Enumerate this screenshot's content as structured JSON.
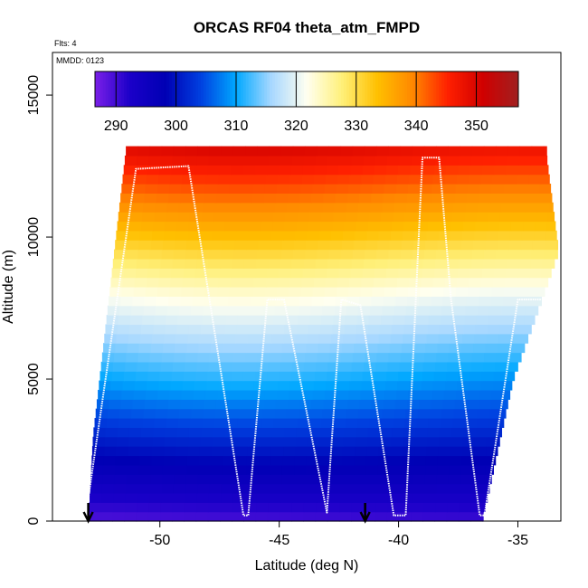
{
  "chart_data": {
    "type": "heatmap",
    "title": "ORCAS RF04 theta_atm_FMPD",
    "annotations": [
      "Flts: 4",
      "MMDD: 0123"
    ],
    "xlabel": "Latitude (deg N)",
    "ylabel": "Altitude (m)",
    "xlim": [
      -54.5,
      -33.2
    ],
    "ylim": [
      0,
      16500
    ],
    "x_ticks": [
      -50,
      -45,
      -40,
      -35
    ],
    "y_ticks": [
      0,
      5000,
      10000,
      15000
    ],
    "colorbar": {
      "range": [
        286.5,
        357
      ],
      "ticks": [
        290,
        300,
        310,
        320,
        330,
        340,
        350
      ],
      "colors": [
        "#7b1fe8",
        "#1a00c8",
        "#0000b4",
        "#0040e0",
        "#00a8ff",
        "#a8d8ff",
        "#fffff0",
        "#fff07a",
        "#ffc000",
        "#ff8800",
        "#ff2000",
        "#d00000",
        "#a02020"
      ]
    },
    "field_model": {
      "description": "potential temperature increases with altitude",
      "surface_theta_north": 289,
      "lapse_K_per_km": 4.0,
      "upper_lapse_K_per_km": 5.2
    },
    "data_extent": {
      "west_edge": [
        [
          -53.0,
          0
        ],
        [
          -52.8,
          3000
        ],
        [
          -51.5,
          12500
        ],
        [
          -33.8,
          12800
        ],
        [
          -33.3,
          9500
        ],
        [
          -34.0,
          7800
        ],
        [
          -35.2,
          5000
        ],
        [
          -36.5,
          0
        ]
      ],
      "top_alt": 12900
    },
    "flight_track": {
      "lat": [
        -53.0,
        -51.0,
        -48.8,
        -46.5,
        -46.3,
        -45.5,
        -44.8,
        -43.0,
        -42.4,
        -41.6,
        -40.2,
        -39.7,
        -39.0,
        -38.3,
        -37.8,
        -36.6,
        -36.4,
        -35.0,
        -33.8
      ],
      "alt": [
        800,
        12400,
        12500,
        200,
        200,
        7800,
        7800,
        300,
        7800,
        7600,
        200,
        200,
        12800,
        12800,
        7800,
        200,
        200,
        7800,
        7800
      ]
    },
    "markers": [
      {
        "lat": -53.0,
        "label": "arrow"
      },
      {
        "lat": -41.4,
        "label": "arrow"
      }
    ]
  }
}
